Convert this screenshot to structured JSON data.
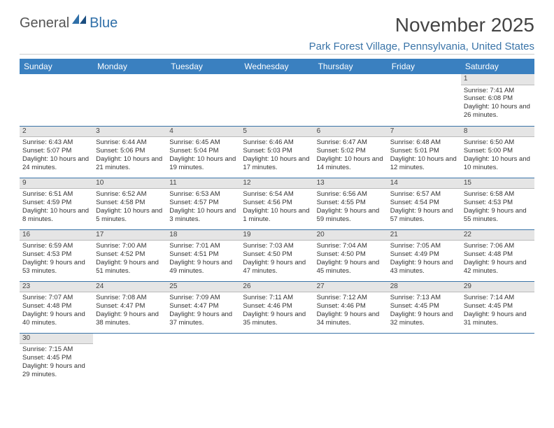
{
  "logo": {
    "general": "General",
    "blue": "Blue"
  },
  "title": "November 2025",
  "location": "Park Forest Village, Pennsylvania, United States",
  "colors": {
    "header_bg": "#3a80c0",
    "header_text": "#ffffff",
    "accent": "#3a74a8",
    "divider": "#3a74a8",
    "daynum_bg": "#e5e5e5",
    "text": "#333333"
  },
  "typography": {
    "title_fontsize": 28,
    "location_fontsize": 15,
    "dayheader_fontsize": 12,
    "cell_fontsize": 9.5
  },
  "day_names": [
    "Sunday",
    "Monday",
    "Tuesday",
    "Wednesday",
    "Thursday",
    "Friday",
    "Saturday"
  ],
  "weeks": [
    [
      null,
      null,
      null,
      null,
      null,
      null,
      {
        "n": "1",
        "sunrise": "Sunrise: 7:41 AM",
        "sunset": "Sunset: 6:08 PM",
        "daylight": "Daylight: 10 hours and 26 minutes."
      }
    ],
    [
      {
        "n": "2",
        "sunrise": "Sunrise: 6:43 AM",
        "sunset": "Sunset: 5:07 PM",
        "daylight": "Daylight: 10 hours and 24 minutes."
      },
      {
        "n": "3",
        "sunrise": "Sunrise: 6:44 AM",
        "sunset": "Sunset: 5:06 PM",
        "daylight": "Daylight: 10 hours and 21 minutes."
      },
      {
        "n": "4",
        "sunrise": "Sunrise: 6:45 AM",
        "sunset": "Sunset: 5:04 PM",
        "daylight": "Daylight: 10 hours and 19 minutes."
      },
      {
        "n": "5",
        "sunrise": "Sunrise: 6:46 AM",
        "sunset": "Sunset: 5:03 PM",
        "daylight": "Daylight: 10 hours and 17 minutes."
      },
      {
        "n": "6",
        "sunrise": "Sunrise: 6:47 AM",
        "sunset": "Sunset: 5:02 PM",
        "daylight": "Daylight: 10 hours and 14 minutes."
      },
      {
        "n": "7",
        "sunrise": "Sunrise: 6:48 AM",
        "sunset": "Sunset: 5:01 PM",
        "daylight": "Daylight: 10 hours and 12 minutes."
      },
      {
        "n": "8",
        "sunrise": "Sunrise: 6:50 AM",
        "sunset": "Sunset: 5:00 PM",
        "daylight": "Daylight: 10 hours and 10 minutes."
      }
    ],
    [
      {
        "n": "9",
        "sunrise": "Sunrise: 6:51 AM",
        "sunset": "Sunset: 4:59 PM",
        "daylight": "Daylight: 10 hours and 8 minutes."
      },
      {
        "n": "10",
        "sunrise": "Sunrise: 6:52 AM",
        "sunset": "Sunset: 4:58 PM",
        "daylight": "Daylight: 10 hours and 5 minutes."
      },
      {
        "n": "11",
        "sunrise": "Sunrise: 6:53 AM",
        "sunset": "Sunset: 4:57 PM",
        "daylight": "Daylight: 10 hours and 3 minutes."
      },
      {
        "n": "12",
        "sunrise": "Sunrise: 6:54 AM",
        "sunset": "Sunset: 4:56 PM",
        "daylight": "Daylight: 10 hours and 1 minute."
      },
      {
        "n": "13",
        "sunrise": "Sunrise: 6:56 AM",
        "sunset": "Sunset: 4:55 PM",
        "daylight": "Daylight: 9 hours and 59 minutes."
      },
      {
        "n": "14",
        "sunrise": "Sunrise: 6:57 AM",
        "sunset": "Sunset: 4:54 PM",
        "daylight": "Daylight: 9 hours and 57 minutes."
      },
      {
        "n": "15",
        "sunrise": "Sunrise: 6:58 AM",
        "sunset": "Sunset: 4:53 PM",
        "daylight": "Daylight: 9 hours and 55 minutes."
      }
    ],
    [
      {
        "n": "16",
        "sunrise": "Sunrise: 6:59 AM",
        "sunset": "Sunset: 4:53 PM",
        "daylight": "Daylight: 9 hours and 53 minutes."
      },
      {
        "n": "17",
        "sunrise": "Sunrise: 7:00 AM",
        "sunset": "Sunset: 4:52 PM",
        "daylight": "Daylight: 9 hours and 51 minutes."
      },
      {
        "n": "18",
        "sunrise": "Sunrise: 7:01 AM",
        "sunset": "Sunset: 4:51 PM",
        "daylight": "Daylight: 9 hours and 49 minutes."
      },
      {
        "n": "19",
        "sunrise": "Sunrise: 7:03 AM",
        "sunset": "Sunset: 4:50 PM",
        "daylight": "Daylight: 9 hours and 47 minutes."
      },
      {
        "n": "20",
        "sunrise": "Sunrise: 7:04 AM",
        "sunset": "Sunset: 4:50 PM",
        "daylight": "Daylight: 9 hours and 45 minutes."
      },
      {
        "n": "21",
        "sunrise": "Sunrise: 7:05 AM",
        "sunset": "Sunset: 4:49 PM",
        "daylight": "Daylight: 9 hours and 43 minutes."
      },
      {
        "n": "22",
        "sunrise": "Sunrise: 7:06 AM",
        "sunset": "Sunset: 4:48 PM",
        "daylight": "Daylight: 9 hours and 42 minutes."
      }
    ],
    [
      {
        "n": "23",
        "sunrise": "Sunrise: 7:07 AM",
        "sunset": "Sunset: 4:48 PM",
        "daylight": "Daylight: 9 hours and 40 minutes."
      },
      {
        "n": "24",
        "sunrise": "Sunrise: 7:08 AM",
        "sunset": "Sunset: 4:47 PM",
        "daylight": "Daylight: 9 hours and 38 minutes."
      },
      {
        "n": "25",
        "sunrise": "Sunrise: 7:09 AM",
        "sunset": "Sunset: 4:47 PM",
        "daylight": "Daylight: 9 hours and 37 minutes."
      },
      {
        "n": "26",
        "sunrise": "Sunrise: 7:11 AM",
        "sunset": "Sunset: 4:46 PM",
        "daylight": "Daylight: 9 hours and 35 minutes."
      },
      {
        "n": "27",
        "sunrise": "Sunrise: 7:12 AM",
        "sunset": "Sunset: 4:46 PM",
        "daylight": "Daylight: 9 hours and 34 minutes."
      },
      {
        "n": "28",
        "sunrise": "Sunrise: 7:13 AM",
        "sunset": "Sunset: 4:45 PM",
        "daylight": "Daylight: 9 hours and 32 minutes."
      },
      {
        "n": "29",
        "sunrise": "Sunrise: 7:14 AM",
        "sunset": "Sunset: 4:45 PM",
        "daylight": "Daylight: 9 hours and 31 minutes."
      }
    ],
    [
      {
        "n": "30",
        "sunrise": "Sunrise: 7:15 AM",
        "sunset": "Sunset: 4:45 PM",
        "daylight": "Daylight: 9 hours and 29 minutes."
      },
      null,
      null,
      null,
      null,
      null,
      null
    ]
  ]
}
